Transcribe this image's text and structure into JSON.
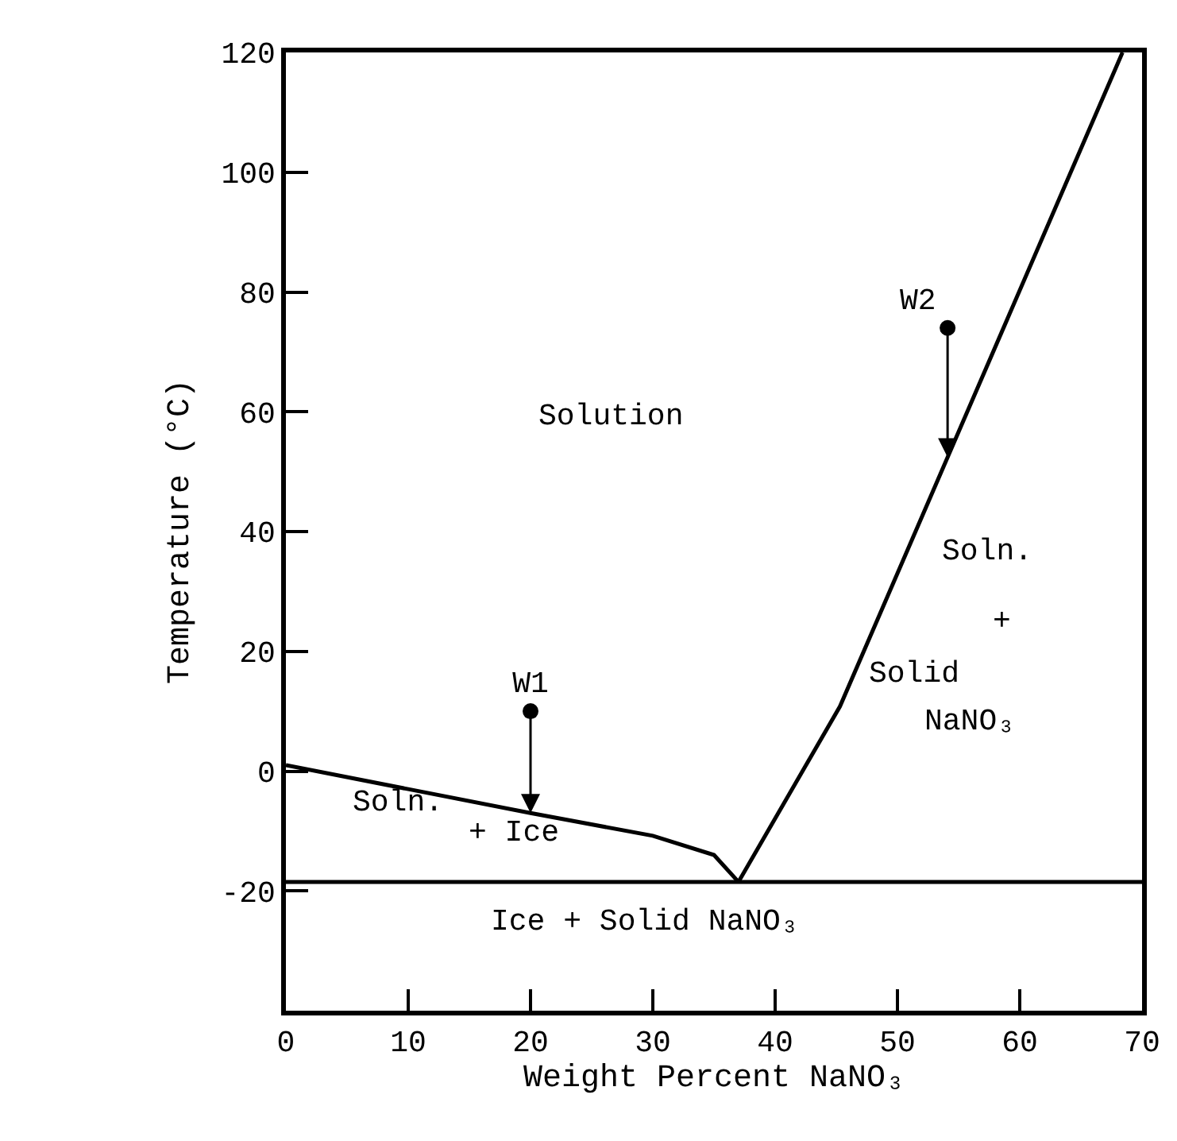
{
  "chart_data": {
    "type": "line",
    "xlabel": "Weight Percent NaNO₃",
    "ylabel": "Temperature (°C)",
    "xlim": [
      0,
      70
    ],
    "ylim": [
      -40,
      120
    ],
    "xticks": [
      0,
      10,
      20,
      30,
      40,
      50,
      60,
      70
    ],
    "yticks": [
      -20,
      0,
      20,
      40,
      60,
      80,
      100,
      120
    ],
    "legend": false,
    "series": [
      {
        "color": "#000000",
        "x": [
          0,
          10,
          20,
          30,
          35,
          37
        ],
        "values": [
          1,
          -3,
          -7,
          -10.8,
          -14,
          -18.5
        ]
      },
      {
        "color": "#000000",
        "x": [
          37,
          45.3,
          68.4
        ],
        "values": [
          -18.5,
          10.8,
          120
        ]
      },
      {
        "type": "scatter",
        "name": "W1",
        "color": "#000000",
        "marker": "circle",
        "x": [
          20
        ],
        "values": [
          10
        ]
      },
      {
        "type": "scatter",
        "name": "W2",
        "color": "#000000",
        "marker": "circle",
        "x": [
          54.1
        ],
        "values": [
          74
        ]
      }
    ],
    "ref_lines": [
      {
        "axis": "y",
        "value": -18.5,
        "color": "#000000"
      }
    ],
    "annotations": [
      "Solution",
      "Soln.",
      "+",
      "Solid",
      "NaNO₃",
      "Soln.",
      "+ Ice",
      "Ice + Solid NaNO₃"
    ]
  }
}
